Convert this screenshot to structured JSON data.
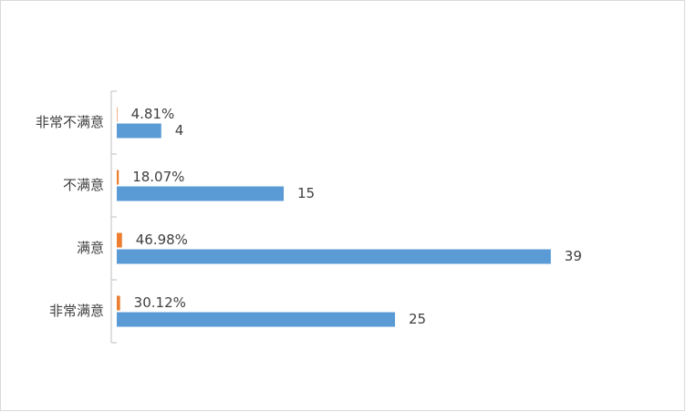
{
  "chart_data": {
    "type": "bar",
    "orientation": "horizontal",
    "categories": [
      "非常不满意",
      "不满意",
      "满意",
      "非常满意"
    ],
    "series": [
      {
        "color": "#ed7d31",
        "values": [
          0.0481,
          0.1807,
          0.4698,
          0.3012
        ],
        "value_labels": [
          "4.81%",
          "18.07%",
          "46.98%",
          "30.12%"
        ]
      },
      {
        "color": "#5b9bd5",
        "values": [
          4,
          15,
          39,
          25
        ]
      }
    ],
    "xlim": [
      0,
      45
    ]
  }
}
